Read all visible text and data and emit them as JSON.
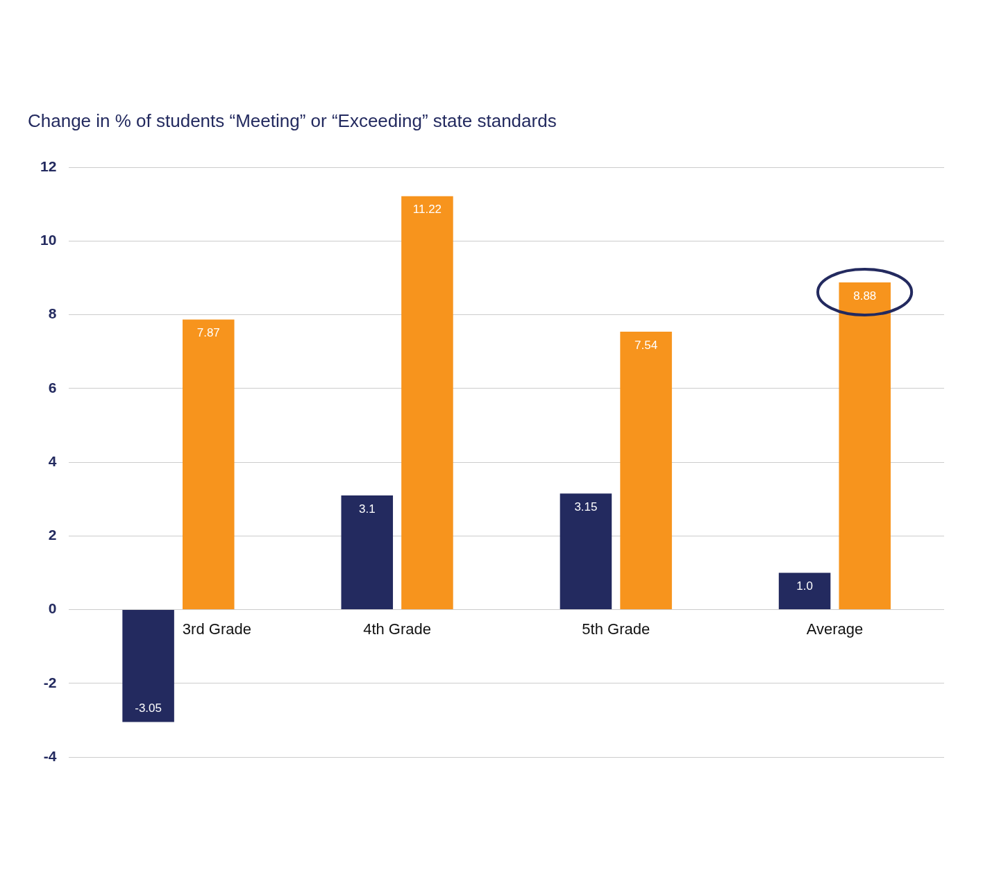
{
  "chart_data": {
    "type": "bar",
    "title": "Change in % of students “Meeting” or “Exceeding” state standards",
    "categories": [
      "3rd Grade",
      "4th Grade",
      "5th Grade",
      "Average"
    ],
    "series": [
      {
        "color": "#232a5f",
        "values": [
          -3.05,
          3.1,
          3.15,
          1.0
        ],
        "value_labels": [
          "-3.05",
          "3.1",
          "3.15",
          "1.0"
        ]
      },
      {
        "color": "#f7941d",
        "values": [
          7.87,
          11.22,
          7.54,
          8.88
        ],
        "value_labels": [
          "7.87",
          "11.22",
          "7.54",
          "8.88"
        ]
      }
    ],
    "ylim": [
      -4,
      12
    ],
    "yticks": [
      -4,
      -2,
      0,
      2,
      4,
      6,
      8,
      10,
      12
    ],
    "grid": "y",
    "legend": false
  }
}
